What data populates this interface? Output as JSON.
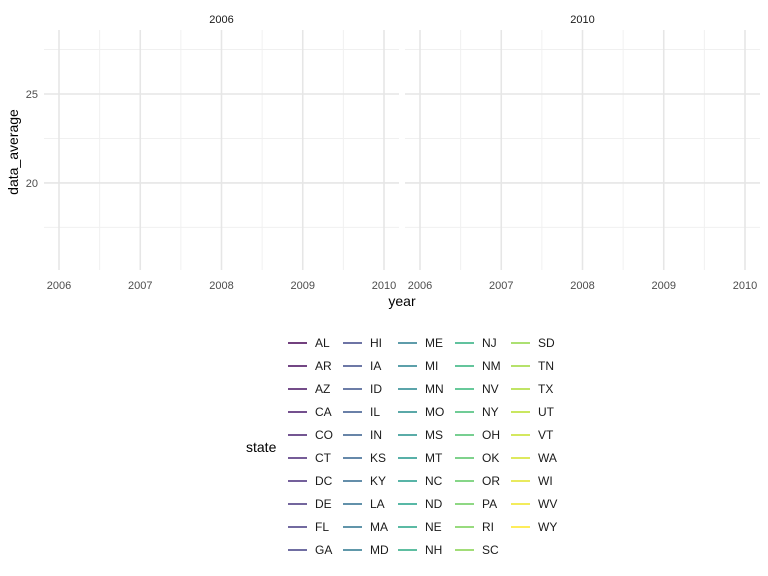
{
  "chart_data": {
    "type": "line",
    "facet_by": "cut_year",
    "facets": [
      "2006",
      "2010"
    ],
    "xlabel": "year",
    "ylabel": "data_average",
    "x_ticks": [
      "2006",
      "2007",
      "2008",
      "2009",
      "2010"
    ],
    "xlim": [
      2006,
      2010
    ],
    "y_ticks": [
      "20",
      "25"
    ],
    "ylim": [
      15.1,
      28.6
    ],
    "grid": true,
    "legend": {
      "title": "state",
      "placement": "bottom",
      "columns": 5,
      "palette": "viridis",
      "entries": [
        "AL",
        "AR",
        "AZ",
        "CA",
        "CO",
        "CT",
        "DC",
        "DE",
        "FL",
        "GA",
        "HI",
        "IA",
        "ID",
        "IL",
        "IN",
        "KS",
        "KY",
        "LA",
        "MA",
        "MD",
        "ME",
        "MI",
        "MN",
        "MO",
        "MS",
        "MT",
        "NC",
        "ND",
        "NE",
        "NH",
        "NJ",
        "NM",
        "NV",
        "NY",
        "OH",
        "OK",
        "OR",
        "PA",
        "RI",
        "SC",
        "SD",
        "TN",
        "TX",
        "UT",
        "VT",
        "WA",
        "WI",
        "WV",
        "WY"
      ]
    },
    "series": []
  }
}
